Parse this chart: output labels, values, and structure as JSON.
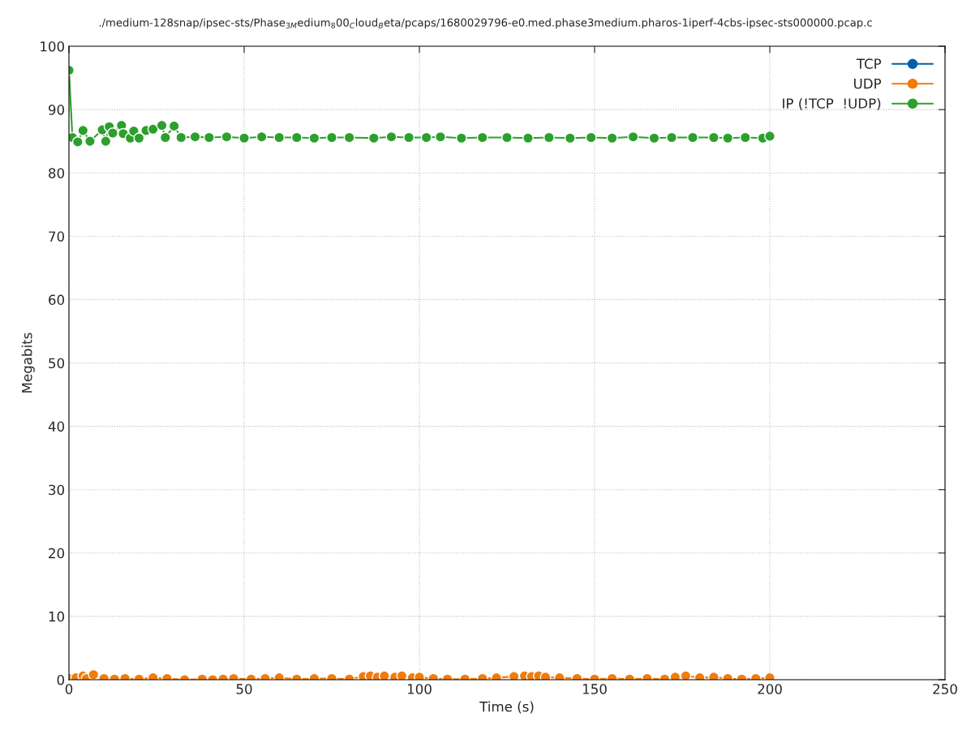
{
  "chart_data": {
    "type": "line",
    "title": "./medium-128snap/ipsec-sts/Phase$_{3M}$edium$_{8}$00$_{C}$loud$_{B}$eta/pcaps/1680029796-e0.med.phase3medium.pharos-1iperf-4cbs-ipsec-sts000000.pcap.c",
    "xlabel": "Time (s)",
    "ylabel": "Megabits",
    "xlim": [
      0,
      250
    ],
    "xticks": [
      0,
      50,
      100,
      150,
      200,
      250
    ],
    "ylim": [
      0,
      100
    ],
    "yticks": [
      0,
      10,
      20,
      30,
      40,
      50,
      60,
      70,
      80,
      90,
      100
    ],
    "grid": true,
    "legend": "top right",
    "marker": "circle",
    "line_style": "solid",
    "series": [
      {
        "name": "TCP",
        "color": "#0060ad"
      },
      {
        "name": "UDP",
        "color": "#f07c0c",
        "x": [
          0,
          2,
          4,
          5,
          7,
          10,
          13,
          16,
          20,
          24,
          28,
          33,
          38,
          41,
          44,
          47,
          52,
          56,
          60,
          65,
          70,
          75,
          80,
          84,
          86,
          88,
          90,
          93,
          95,
          98,
          100,
          104,
          108,
          113,
          118,
          122,
          127,
          130,
          132,
          134,
          136,
          140,
          145,
          150,
          155,
          160,
          165,
          170,
          173,
          176,
          180,
          184,
          188,
          192,
          196,
          200
        ],
        "values": [
          0.2,
          0.3,
          0.6,
          0.2,
          0.8,
          0.2,
          0.1,
          0.2,
          0.1,
          0.3,
          0.2,
          0.0,
          0.1,
          0.0,
          0.1,
          0.2,
          0.1,
          0.2,
          0.3,
          0.1,
          0.2,
          0.2,
          0.1,
          0.5,
          0.6,
          0.4,
          0.6,
          0.4,
          0.6,
          0.3,
          0.4,
          0.2,
          0.1,
          0.1,
          0.2,
          0.3,
          0.5,
          0.6,
          0.5,
          0.6,
          0.4,
          0.3,
          0.2,
          0.1,
          0.2,
          0.1,
          0.2,
          0.1,
          0.4,
          0.6,
          0.3,
          0.4,
          0.2,
          0.1,
          0.2,
          0.3
        ]
      },
      {
        "name": "IP (!TCP  !UDP)",
        "color": "#2ca02c",
        "x": [
          0,
          1,
          2.5,
          4,
          6,
          9.5,
          10.5,
          11.5,
          12.5,
          15,
          15.5,
          17.5,
          18.5,
          20,
          22,
          24,
          26.5,
          27.5,
          30,
          32,
          36,
          40,
          45,
          50,
          55,
          60,
          65,
          70,
          75,
          80,
          87,
          92,
          97,
          102,
          106,
          112,
          118,
          125,
          131,
          137,
          143,
          149,
          155,
          161,
          167,
          172,
          178,
          184,
          188,
          193,
          198,
          200
        ],
        "values": [
          96.2,
          85.6,
          84.9,
          86.7,
          85.0,
          86.8,
          85.0,
          87.3,
          86.3,
          87.5,
          86.2,
          85.5,
          86.6,
          85.5,
          86.7,
          86.9,
          87.5,
          85.6,
          87.4,
          85.6,
          85.7,
          85.6,
          85.7,
          85.5,
          85.7,
          85.6,
          85.6,
          85.5,
          85.6,
          85.6,
          85.5,
          85.7,
          85.6,
          85.6,
          85.7,
          85.5,
          85.6,
          85.6,
          85.5,
          85.6,
          85.5,
          85.6,
          85.5,
          85.7,
          85.5,
          85.6,
          85.6,
          85.6,
          85.5,
          85.6,
          85.5,
          85.8
        ]
      }
    ]
  }
}
